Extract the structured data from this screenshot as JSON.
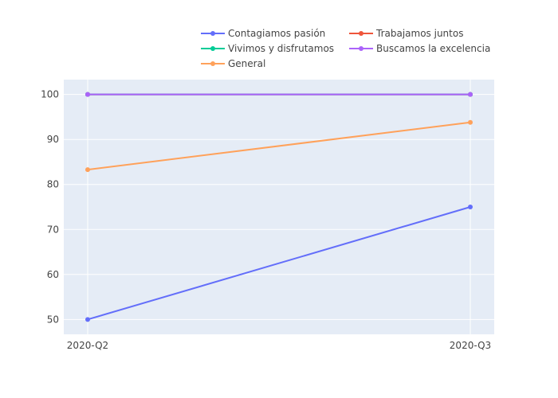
{
  "chart_data": {
    "type": "line",
    "title": "",
    "xlabel": "",
    "ylabel": "",
    "categories": [
      "2020-Q2",
      "2020-Q3"
    ],
    "y_ticks": [
      50,
      60,
      70,
      80,
      90,
      100
    ],
    "ylim": [
      46.7,
      103.3
    ],
    "grid": true,
    "legend_position": "top",
    "series": [
      {
        "name": "Contagiamos pasión",
        "color": "#636efa",
        "values": [
          50,
          75
        ]
      },
      {
        "name": "Trabajamos juntos",
        "color": "#EF553B",
        "values": [
          100,
          100
        ]
      },
      {
        "name": "Vivimos y disfrutamos",
        "color": "#00cc96",
        "values": [
          100,
          100
        ]
      },
      {
        "name": "Buscamos la excelencia",
        "color": "#ab63fa",
        "values": [
          100,
          100
        ]
      },
      {
        "name": "General",
        "color": "#FFA15A",
        "values": [
          83.3,
          93.8
        ]
      }
    ]
  }
}
